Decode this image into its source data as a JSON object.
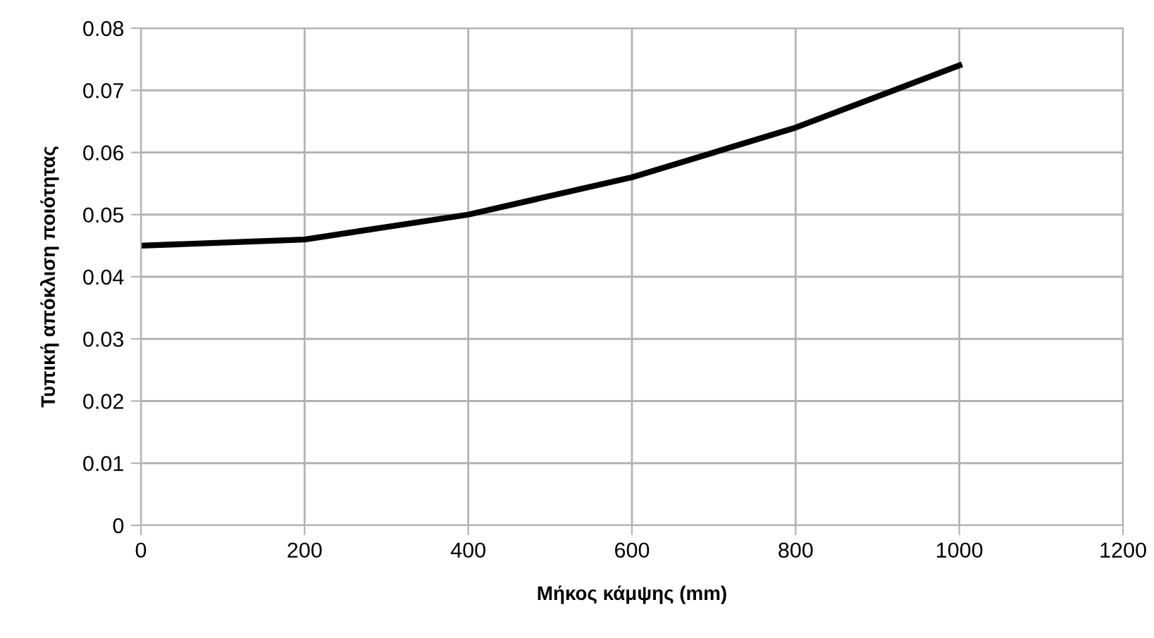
{
  "chart_data": {
    "type": "line",
    "xlabel": "Μήκος κάμψης (mm)",
    "ylabel": "Τυπική απόκλιση ποιότητας",
    "x": [
      0,
      200,
      400,
      600,
      800,
      1000
    ],
    "series": [
      {
        "color": "#000000",
        "values": [
          0.045,
          0.046,
          0.05,
          0.056,
          0.064,
          0.074
        ]
      }
    ],
    "xlim": [
      0,
      1200
    ],
    "xticks": [
      0,
      200,
      400,
      600,
      800,
      1000,
      1200
    ],
    "ylim": [
      0,
      0.08
    ],
    "yticks": [
      0,
      0.01,
      0.02,
      0.03,
      0.04,
      0.05,
      0.06,
      0.07,
      0.08
    ],
    "grid": true,
    "legend": false,
    "marker": "none",
    "line_style": "solid"
  }
}
